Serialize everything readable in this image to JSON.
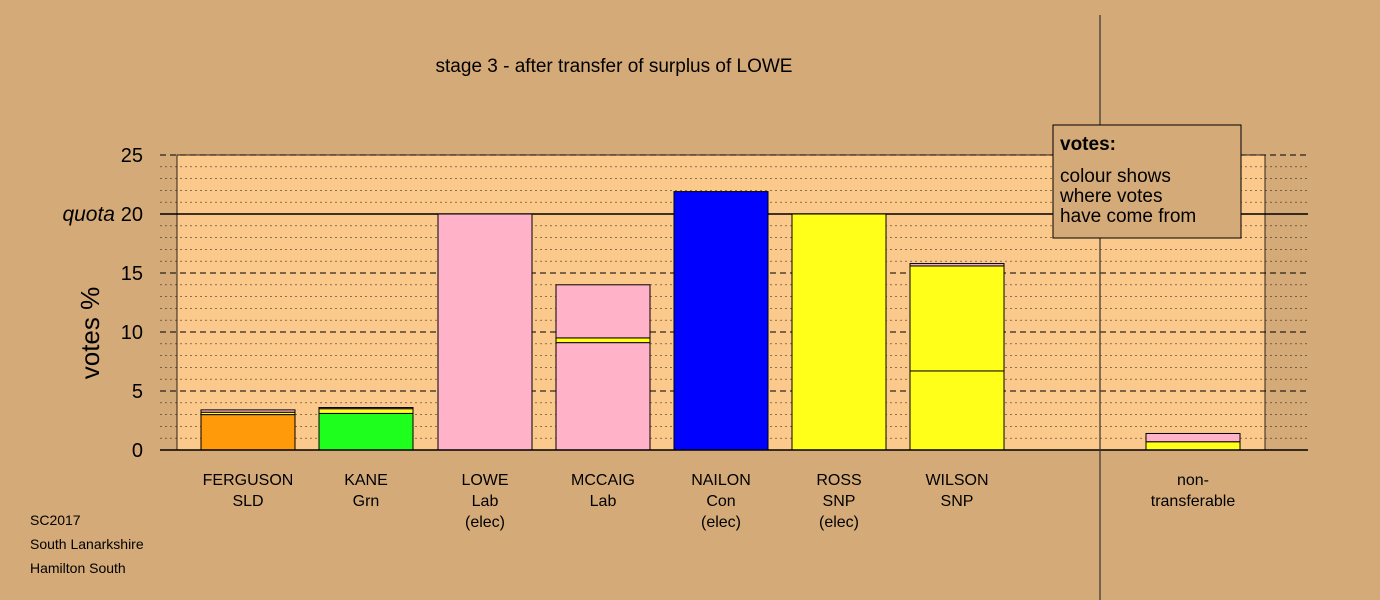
{
  "chart_data": {
    "type": "bar",
    "stacked": true,
    "title": "stage 3 - after transfer of surplus of LOWE",
    "ylabel": "votes %",
    "ylim": [
      0,
      25
    ],
    "yticks": [
      0,
      5,
      10,
      15,
      20,
      25
    ],
    "quota": {
      "value": 20,
      "label": "quota"
    },
    "grid": true,
    "categories": [
      {
        "lines": [
          "FERGUSON",
          "SLD"
        ]
      },
      {
        "lines": [
          "KANE",
          "Grn"
        ]
      },
      {
        "lines": [
          "LOWE",
          "Lab",
          "(elec)"
        ]
      },
      {
        "lines": [
          "MCCAIG",
          "Lab"
        ]
      },
      {
        "lines": [
          "NAILON",
          "Con",
          "(elec)"
        ]
      },
      {
        "lines": [
          "ROSS",
          "SNP",
          "(elec)"
        ]
      },
      {
        "lines": [
          "WILSON",
          "SNP"
        ]
      },
      {
        "lines": [
          "non-",
          "transferable"
        ]
      }
    ],
    "bars": [
      {
        "category": 0,
        "segments": [
          {
            "value": 3.0,
            "color": "#ff9a0a"
          },
          {
            "value": 0.2,
            "color": "#ffff1a"
          },
          {
            "value": 0.2,
            "color": "#ffb2c8"
          }
        ]
      },
      {
        "category": 1,
        "segments": [
          {
            "value": 3.1,
            "color": "#1eff1e"
          },
          {
            "value": 0.4,
            "color": "#ffff1a"
          },
          {
            "value": 0.1,
            "color": "#ffb2c8"
          }
        ]
      },
      {
        "category": 2,
        "segments": [
          {
            "value": 20.0,
            "color": "#ffb2c8"
          }
        ]
      },
      {
        "category": 3,
        "segments": [
          {
            "value": 9.1,
            "color": "#ffb2c8"
          },
          {
            "value": 0.4,
            "color": "#ffff1a"
          },
          {
            "value": 4.5,
            "color": "#ffb2c8"
          }
        ]
      },
      {
        "category": 4,
        "segments": [
          {
            "value": 21.9,
            "color": "#0000ff"
          }
        ]
      },
      {
        "category": 5,
        "segments": [
          {
            "value": 20.0,
            "color": "#ffff1a"
          }
        ]
      },
      {
        "category": 6,
        "segments": [
          {
            "value": 6.7,
            "color": "#ffff1a"
          },
          {
            "value": 8.9,
            "color": "#ffff1a"
          },
          {
            "value": 0.2,
            "color": "#ffb2c8"
          }
        ]
      },
      {
        "category": 7,
        "segments": [
          {
            "value": 0.7,
            "color": "#ffff1a"
          },
          {
            "value": 0.7,
            "color": "#ffb2c8"
          }
        ]
      }
    ],
    "legend": {
      "placement": "top-right",
      "title": "votes:",
      "lines": [
        "colour shows",
        "where votes",
        "have come from"
      ]
    },
    "colors": {
      "background": "#d4aa78",
      "plot_background": "#fcc98c",
      "axis": "#000000",
      "grid": "#000000",
      "legend_background": "#d4aa78"
    }
  },
  "footnotes": {
    "election": "SC2017",
    "council": "South Lanarkshire",
    "ward": "Hamilton South"
  }
}
